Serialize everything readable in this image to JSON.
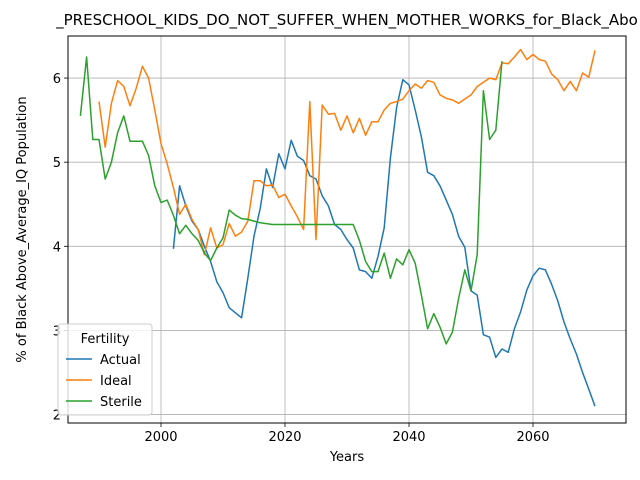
{
  "chart_data": {
    "type": "line",
    "title": "_PRESCHOOL_KIDS_DO_NOT_SUFFER_WHEN_MOTHER_WORKS_for_Black_Abo",
    "xlabel": "Years",
    "ylabel": "% of Black Above_Average_IQ Population",
    "xlim": [
      1985,
      2075
    ],
    "ylim": [
      1.9,
      6.5
    ],
    "xticks": [
      2000,
      2020,
      2040,
      2060
    ],
    "yticks": [
      2,
      3,
      4,
      5,
      6
    ],
    "grid": true,
    "legend": {
      "title": "Fertility",
      "placement": "lower-left"
    },
    "series": [
      {
        "name": "Actual",
        "color": "#1f77b4",
        "x": [
          2002,
          2003,
          2004,
          2005,
          2006,
          2007,
          2008,
          2009,
          2010,
          2011,
          2012,
          2013,
          2014,
          2015,
          2016,
          2017,
          2018,
          2019,
          2020,
          2021,
          2022,
          2023,
          2024,
          2025,
          2026,
          2027,
          2028,
          2029,
          2030,
          2031,
          2032,
          2033,
          2034,
          2035,
          2036,
          2037,
          2038,
          2039,
          2040,
          2041,
          2042,
          2043,
          2044,
          2045,
          2046,
          2047,
          2048,
          2049,
          2050,
          2051,
          2052,
          2053,
          2054,
          2055,
          2056,
          2057,
          2058,
          2059,
          2060,
          2061,
          2062,
          2063,
          2064,
          2065,
          2066,
          2067,
          2068,
          2069,
          2070
        ],
        "values": [
          3.97,
          4.72,
          4.48,
          4.3,
          4.2,
          4.0,
          3.82,
          3.58,
          3.45,
          3.27,
          3.21,
          3.15,
          3.62,
          4.12,
          4.45,
          4.92,
          4.7,
          5.1,
          4.92,
          5.26,
          5.07,
          5.02,
          4.84,
          4.8,
          4.6,
          4.48,
          4.26,
          4.2,
          4.08,
          3.98,
          3.72,
          3.7,
          3.62,
          3.88,
          4.22,
          5.05,
          5.65,
          5.98,
          5.92,
          5.62,
          5.3,
          4.88,
          4.84,
          4.72,
          4.55,
          4.38,
          4.12,
          3.99,
          3.47,
          3.42,
          2.95,
          2.92,
          2.68,
          2.78,
          2.74,
          3.02,
          3.22,
          3.48,
          3.65,
          3.74,
          3.72,
          3.55,
          3.35,
          3.1,
          2.9,
          2.72,
          2.5,
          2.3,
          2.1
        ]
      },
      {
        "name": "Ideal",
        "color": "#ff7f0e",
        "x": [
          1990,
          1991,
          1992,
          1993,
          1994,
          1995,
          1996,
          1997,
          1998,
          1999,
          2000,
          2001,
          2002,
          2003,
          2004,
          2005,
          2006,
          2007,
          2008,
          2009,
          2010,
          2011,
          2012,
          2013,
          2014,
          2015,
          2016,
          2017,
          2018,
          2019,
          2020,
          2021,
          2022,
          2023,
          2024,
          2025,
          2026,
          2027,
          2028,
          2029,
          2030,
          2031,
          2032,
          2033,
          2034,
          2035,
          2036,
          2037,
          2038,
          2039,
          2040,
          2041,
          2042,
          2043,
          2044,
          2045,
          2046,
          2047,
          2048,
          2049,
          2050,
          2051,
          2052,
          2053,
          2054,
          2055,
          2056,
          2057,
          2058,
          2059,
          2060,
          2061,
          2062,
          2063,
          2064,
          2065,
          2066,
          2067,
          2068,
          2069,
          2070
        ],
        "values": [
          5.72,
          5.18,
          5.7,
          5.97,
          5.9,
          5.67,
          5.88,
          6.14,
          6.0,
          5.62,
          5.22,
          4.98,
          4.7,
          4.38,
          4.5,
          4.32,
          4.2,
          3.9,
          4.22,
          3.98,
          4.02,
          4.27,
          4.12,
          4.17,
          4.3,
          4.78,
          4.78,
          4.72,
          4.73,
          4.58,
          4.62,
          4.48,
          4.35,
          4.2,
          5.72,
          4.08,
          5.68,
          5.57,
          5.58,
          5.38,
          5.55,
          5.35,
          5.52,
          5.32,
          5.48,
          5.48,
          5.62,
          5.7,
          5.72,
          5.75,
          5.85,
          5.93,
          5.88,
          5.97,
          5.95,
          5.8,
          5.76,
          5.74,
          5.7,
          5.75,
          5.8,
          5.9,
          5.95,
          6.0,
          5.98,
          6.18,
          6.17,
          6.25,
          6.34,
          6.22,
          6.28,
          6.22,
          6.2,
          6.05,
          5.98,
          5.85,
          5.96,
          5.85,
          6.06,
          6.01,
          6.33
        ]
      },
      {
        "name": "Sterile",
        "color": "#2ca02c",
        "x": [
          1987,
          1988,
          1989,
          1990,
          1991,
          1992,
          1993,
          1994,
          1995,
          1996,
          1997,
          1998,
          1999,
          2000,
          2001,
          2002,
          2003,
          2004,
          2005,
          2006,
          2007,
          2008,
          2009,
          2010,
          2011,
          2012,
          2013,
          2014,
          2015,
          2016,
          2017,
          2018,
          2019,
          2020,
          2021,
          2022,
          2023,
          2024,
          2025,
          2026,
          2027,
          2028,
          2029,
          2030,
          2031,
          2032,
          2033,
          2034,
          2035,
          2036,
          2037,
          2038,
          2039,
          2040,
          2041,
          2042,
          2043,
          2044,
          2045,
          2046,
          2047,
          2048,
          2049,
          2050,
          2051,
          2052,
          2053,
          2054,
          2055
        ],
        "values": [
          5.55,
          6.25,
          5.27,
          5.27,
          4.8,
          5.0,
          5.35,
          5.55,
          5.25,
          5.25,
          5.25,
          5.08,
          4.72,
          4.52,
          4.55,
          4.37,
          4.15,
          4.25,
          4.15,
          4.07,
          3.92,
          3.83,
          3.98,
          4.1,
          4.43,
          4.37,
          4.33,
          4.32,
          4.3,
          4.28,
          4.27,
          4.26,
          4.26,
          4.26,
          4.26,
          4.26,
          4.26,
          4.26,
          4.26,
          4.26,
          4.26,
          4.26,
          4.26,
          4.26,
          4.26,
          4.07,
          3.82,
          3.7,
          3.7,
          3.92,
          3.62,
          3.85,
          3.78,
          3.96,
          3.8,
          3.42,
          3.02,
          3.2,
          3.04,
          2.84,
          2.98,
          3.38,
          3.72,
          3.47,
          3.9,
          5.85,
          5.27,
          5.38,
          6.2
        ]
      }
    ]
  }
}
